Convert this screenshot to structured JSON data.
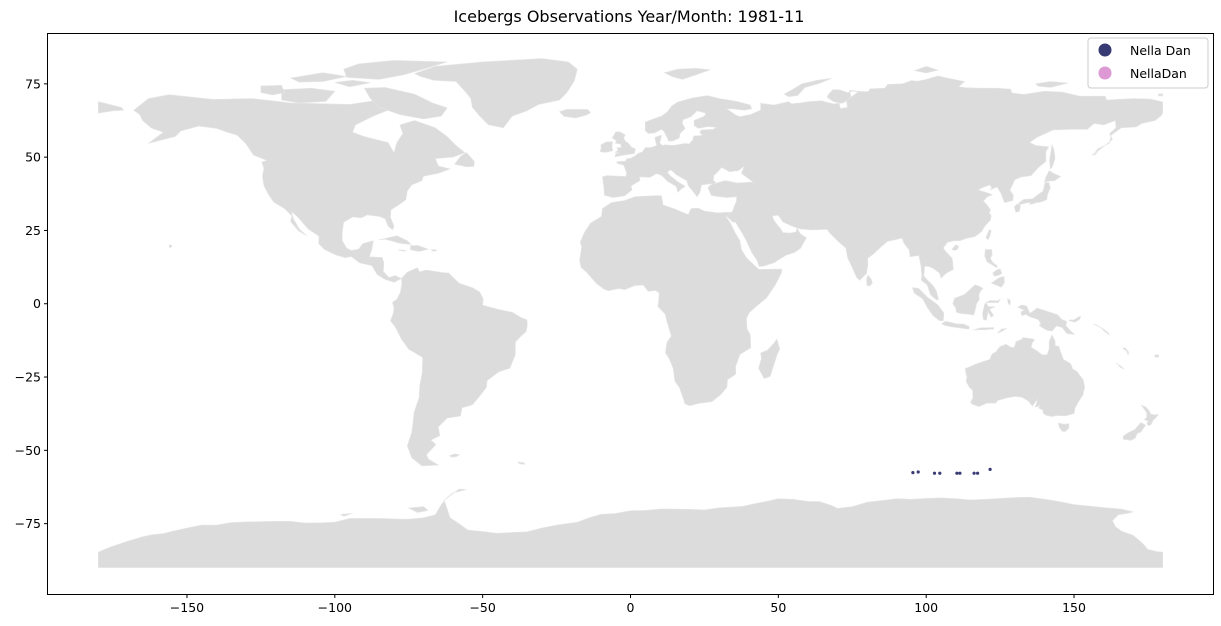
{
  "chart_data": {
    "type": "scatter",
    "title": "Icebergs Observations Year/Month: 1981-11",
    "xlabel": "",
    "ylabel": "",
    "xlim": [
      -197,
      197
    ],
    "ylim": [
      -99,
      92
    ],
    "x_ticks": [
      -150,
      -100,
      -50,
      0,
      50,
      100,
      150
    ],
    "x_tick_labels": [
      "−150",
      "−100",
      "−50",
      "0",
      "50",
      "100",
      "150"
    ],
    "y_ticks": [
      -75,
      -50,
      -25,
      0,
      25,
      50,
      75
    ],
    "y_tick_labels": [
      "−75",
      "−50",
      "−25",
      "0",
      "25",
      "50",
      "75"
    ],
    "grid": false,
    "legend_position": "top-right",
    "basemap": "world countries (light gray)",
    "series": [
      {
        "name": "Nella Dan",
        "color": "#383a74",
        "points": [
          {
            "lon": 95.5,
            "lat": -57.6
          },
          {
            "lon": 97.3,
            "lat": -57.4
          },
          {
            "lon": 102.8,
            "lat": -57.8
          },
          {
            "lon": 104.6,
            "lat": -57.8
          },
          {
            "lon": 110.4,
            "lat": -57.8
          },
          {
            "lon": 111.4,
            "lat": -57.8
          },
          {
            "lon": 116.2,
            "lat": -57.8
          },
          {
            "lon": 117.4,
            "lat": -57.8
          },
          {
            "lon": 121.6,
            "lat": -56.5
          }
        ]
      },
      {
        "name": "NellaDan",
        "color": "#dd99d3",
        "points": []
      }
    ]
  }
}
